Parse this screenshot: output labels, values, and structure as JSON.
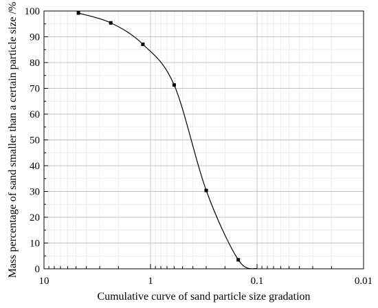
{
  "chart_data": {
    "type": "line",
    "title": "",
    "xlabel": "Cumulative curve of sand particle size gradation",
    "ylabel": "Mass percentage of sand smaller than a certain particle size /%",
    "x_scale": "log",
    "x_reversed": true,
    "xlim": [
      10,
      0.01
    ],
    "ylim": [
      0,
      100
    ],
    "x_major_ticks": [
      10,
      1,
      0.1,
      0.01
    ],
    "x_tick_labels": [
      "10",
      "1",
      "0.1",
      "0.01"
    ],
    "y_ticks": [
      0,
      10,
      20,
      30,
      40,
      50,
      60,
      70,
      80,
      90,
      100
    ],
    "y_tick_labels": [
      "0",
      "10",
      "20",
      "30",
      "40",
      "50",
      "60",
      "70",
      "80",
      "90",
      "100"
    ],
    "grid": true,
    "legend": "none",
    "series": [
      {
        "marker": "square",
        "color": "#000000",
        "points": [
          {
            "x": 4.75,
            "y": 99.2
          },
          {
            "x": 2.36,
            "y": 95.4
          },
          {
            "x": 1.18,
            "y": 87.1
          },
          {
            "x": 0.6,
            "y": 71.3
          },
          {
            "x": 0.3,
            "y": 30.4
          },
          {
            "x": 0.15,
            "y": 3.5
          }
        ],
        "curve_end": {
          "x": 0.1,
          "y": 0
        }
      }
    ]
  }
}
